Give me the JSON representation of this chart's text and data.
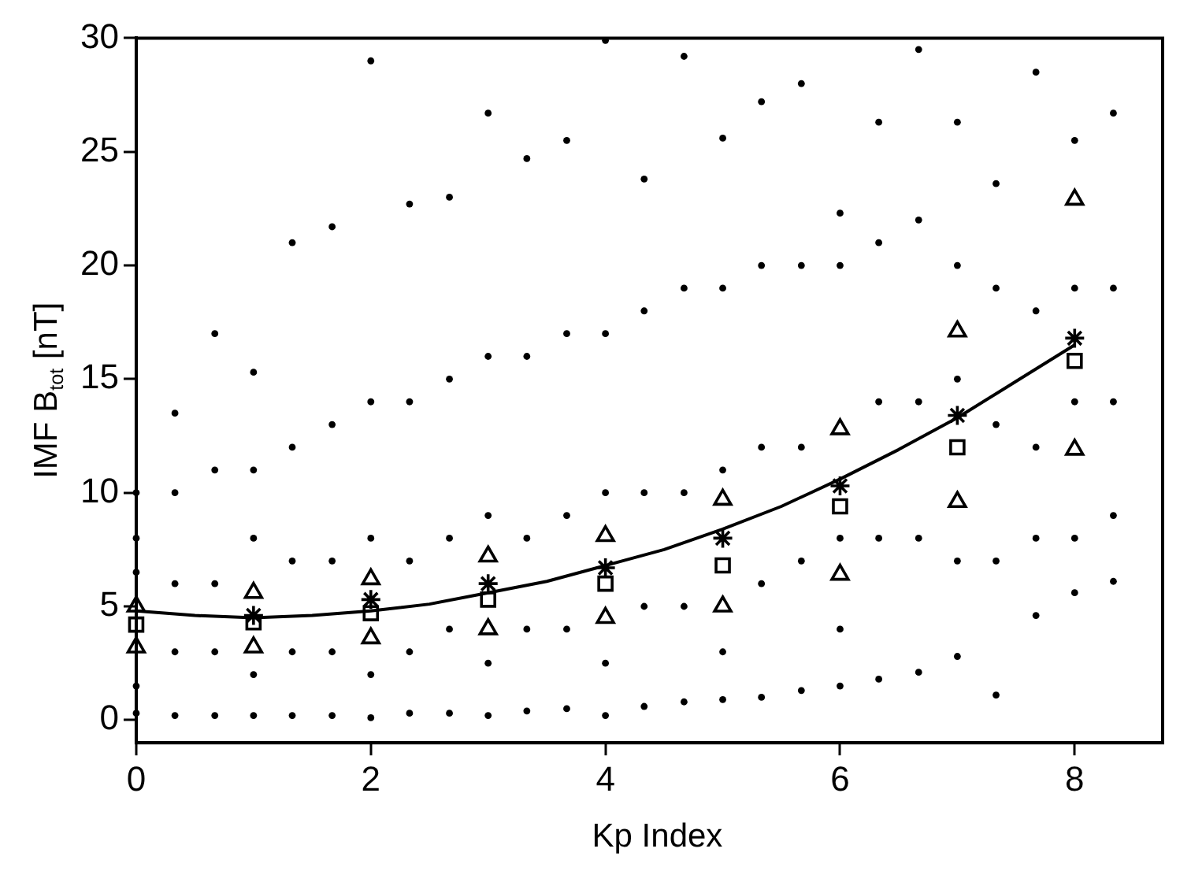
{
  "chart_data": {
    "type": "scatter",
    "xlabel": "Kp Index",
    "ylabel": "IMF B$_{tot}$ [nT]",
    "xlim": [
      0,
      8.75
    ],
    "xticks": [
      0,
      2,
      4,
      6,
      8
    ],
    "ylim": [
      -1,
      30
    ],
    "yticks": [
      0,
      5,
      10,
      15,
      20,
      25,
      30
    ],
    "grid": false,
    "legend": false,
    "series": [
      {
        "marker": "circle",
        "color": "#000000",
        "x": [
          0,
          0,
          0,
          0,
          0,
          0.33,
          0.33,
          0.33,
          0.33,
          0.33,
          0.67,
          0.67,
          0.67,
          0.67,
          0.67,
          1,
          1,
          1,
          1,
          1,
          1.33,
          1.33,
          1.33,
          1.33,
          1.33,
          1.67,
          1.67,
          1.67,
          1.67,
          1.67,
          2,
          2,
          2,
          2,
          2,
          2.33,
          2.33,
          2.33,
          2.33,
          2.33,
          2.67,
          2.67,
          2.67,
          2.67,
          2.67,
          3,
          3,
          3,
          3,
          3,
          3.33,
          3.33,
          3.33,
          3.33,
          3.33,
          3.67,
          3.67,
          3.67,
          3.67,
          3.67,
          4,
          4,
          4,
          4,
          4,
          4.33,
          4.33,
          4.33,
          4.33,
          4.33,
          4.67,
          4.67,
          4.67,
          4.67,
          4.67,
          5,
          5,
          5,
          5,
          5,
          5.33,
          5.33,
          5.33,
          5.33,
          5.33,
          5.67,
          5.67,
          5.67,
          5.67,
          5.67,
          6,
          6,
          6,
          6,
          6,
          6.33,
          6.33,
          6.33,
          6.33,
          6.33,
          6.67,
          6.67,
          6.67,
          6.67,
          6.67,
          7,
          7,
          7,
          7,
          7,
          7.33,
          7.33,
          7.33,
          7.33,
          7.33,
          7.67,
          7.67,
          7.67,
          7.67,
          7.67,
          8,
          8,
          8,
          8,
          8,
          8.33,
          8.33,
          8.33,
          8.33,
          8.33
        ],
        "values": [
          0.3,
          1.5,
          6.5,
          8,
          10,
          0.2,
          3,
          6,
          10,
          13.5,
          0.2,
          3,
          6,
          11,
          17,
          0.2,
          2,
          8,
          11,
          15.3,
          0.2,
          3,
          7,
          12,
          21,
          0.2,
          3,
          7,
          13,
          21.7,
          0.1,
          2,
          8,
          14,
          29,
          0.3,
          3,
          7,
          14,
          22.7,
          0.3,
          4,
          8,
          15,
          23,
          0.2,
          2.5,
          9,
          16,
          26.7,
          0.4,
          4,
          8,
          16,
          24.7,
          0.5,
          4,
          9,
          17,
          25.5,
          0.2,
          2.5,
          10,
          17,
          29.9,
          0.6,
          5,
          10,
          18,
          23.8,
          0.8,
          5,
          10,
          19,
          29.2,
          0.9,
          3,
          11,
          19,
          25.6,
          1,
          6,
          12,
          20,
          27.2,
          1.3,
          7,
          12,
          20,
          28,
          1.5,
          4,
          8,
          20,
          22.3,
          1.8,
          8,
          14,
          21,
          26.3,
          2.1,
          8,
          14,
          22,
          29.5,
          2.8,
          7,
          15,
          20,
          26.3,
          1.1,
          7,
          13,
          19,
          23.6,
          4.6,
          8,
          12,
          18,
          28.5,
          5.6,
          8,
          14,
          19,
          25.5,
          6.1,
          9,
          14,
          19,
          26.7
        ]
      },
      {
        "marker": "triangle",
        "color": "#000000",
        "x": [
          0,
          1,
          2,
          3,
          4,
          5,
          6,
          7,
          8
        ],
        "values": [
          5.0,
          5.6,
          6.2,
          7.2,
          8.1,
          9.7,
          12.8,
          17.1,
          22.9
        ]
      },
      {
        "marker": "triangle",
        "color": "#000000",
        "x": [
          0,
          1,
          2,
          3,
          4,
          5,
          6,
          7,
          8
        ],
        "values": [
          3.2,
          3.2,
          3.6,
          4.0,
          4.5,
          5.0,
          6.4,
          9.6,
          11.9
        ]
      },
      {
        "marker": "square",
        "color": "#000000",
        "x": [
          0,
          1,
          2,
          3,
          4,
          5,
          6,
          7,
          8
        ],
        "values": [
          4.2,
          4.3,
          4.7,
          5.3,
          6.0,
          6.8,
          9.4,
          12.0,
          15.8
        ]
      },
      {
        "marker": "cross",
        "color": "#000000",
        "x": [
          1,
          2,
          3,
          4,
          5,
          6,
          7,
          8
        ],
        "values": [
          4.6,
          5.3,
          6.0,
          6.7,
          8.0,
          10.3,
          13.4,
          16.8
        ]
      },
      {
        "type": "line",
        "marker": "none",
        "color": "#000000",
        "x": [
          0,
          0.5,
          1,
          1.5,
          2,
          2.5,
          3,
          3.5,
          4,
          4.5,
          5,
          5.5,
          6,
          6.5,
          7,
          7.5,
          8
        ],
        "values": [
          4.8,
          4.6,
          4.5,
          4.6,
          4.8,
          5.1,
          5.6,
          6.1,
          6.8,
          7.5,
          8.4,
          9.4,
          10.6,
          11.9,
          13.3,
          14.9,
          16.5
        ]
      }
    ]
  }
}
